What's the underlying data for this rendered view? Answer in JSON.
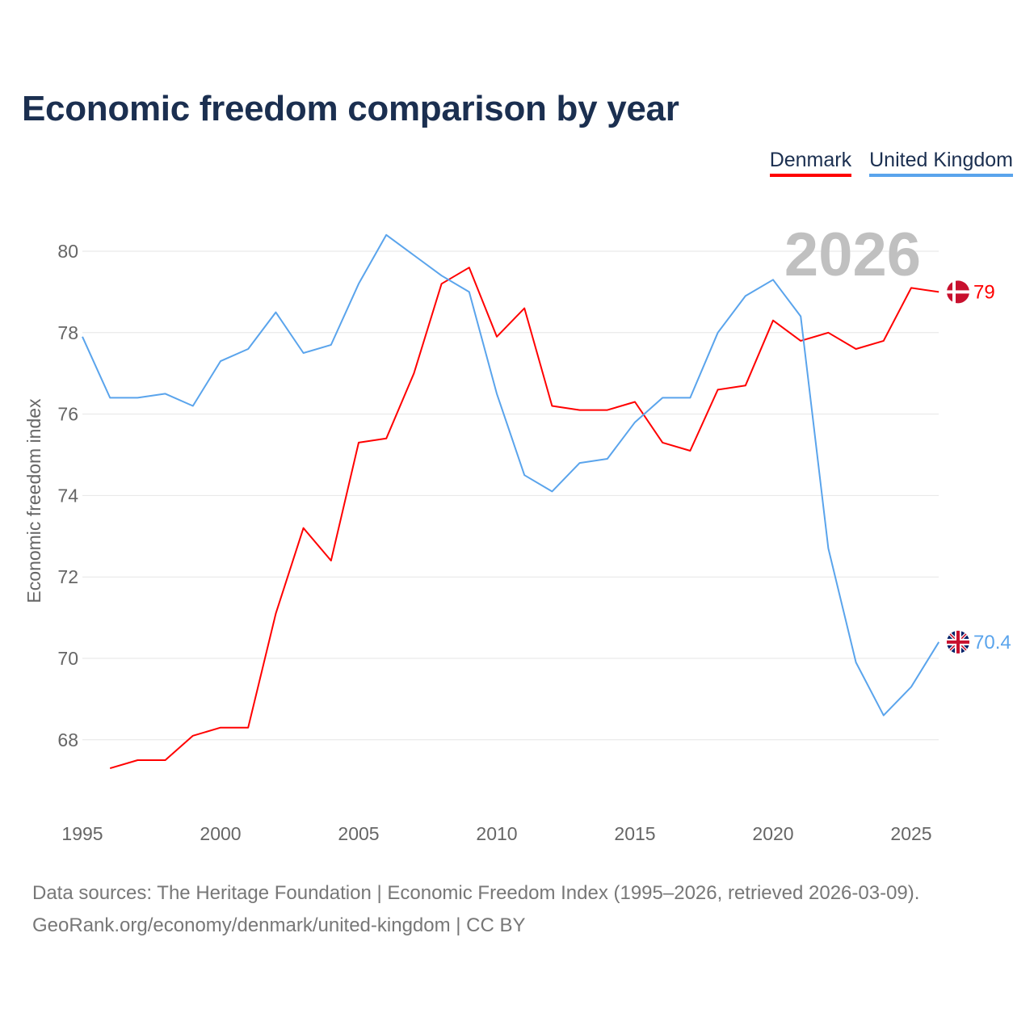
{
  "chart_data": {
    "type": "line",
    "title": "Economic freedom comparison by year",
    "xlabel": "",
    "ylabel": "Economic freedom index",
    "x": [
      1995,
      1996,
      1997,
      1998,
      1999,
      2000,
      2001,
      2002,
      2003,
      2004,
      2005,
      2006,
      2007,
      2008,
      2009,
      2010,
      2011,
      2012,
      2013,
      2014,
      2015,
      2016,
      2017,
      2018,
      2019,
      2020,
      2021,
      2022,
      2023,
      2024,
      2025,
      2026
    ],
    "x_ticks": [
      "1995",
      "2000",
      "2005",
      "2010",
      "2015",
      "2020",
      "2025"
    ],
    "y_ticks": [
      "68",
      "70",
      "72",
      "74",
      "76",
      "78",
      "80"
    ],
    "ylim": [
      66.5,
      81
    ],
    "xlim": [
      1995,
      2026
    ],
    "grid": true,
    "legend_position": "top-right",
    "watermark_year": "2026",
    "series": [
      {
        "name": "Denmark",
        "color": "#ff0000",
        "end_label": "79",
        "values": [
          null,
          67.3,
          67.5,
          67.5,
          68.1,
          68.3,
          68.3,
          71.1,
          73.2,
          72.4,
          75.3,
          75.4,
          77.0,
          79.2,
          79.6,
          77.9,
          78.6,
          76.2,
          76.1,
          76.1,
          76.3,
          75.3,
          75.1,
          76.6,
          76.7,
          78.3,
          77.8,
          78.0,
          77.6,
          77.8,
          79.1,
          79.0
        ]
      },
      {
        "name": "United Kingdom",
        "color": "#5aa4ec",
        "end_label": "70.4",
        "values": [
          77.9,
          76.4,
          76.4,
          76.5,
          76.2,
          77.3,
          77.6,
          78.5,
          77.5,
          77.7,
          79.2,
          80.4,
          79.9,
          79.4,
          79.0,
          76.5,
          74.5,
          74.1,
          74.8,
          74.9,
          75.8,
          76.4,
          76.4,
          78.0,
          78.9,
          79.3,
          78.4,
          72.7,
          69.9,
          68.6,
          69.3,
          70.4
        ]
      }
    ]
  },
  "footer": {
    "line1": "Data sources: The Heritage Foundation | Economic Freedom Index (1995–2026, retrieved 2026-03-09).",
    "line2": "GeoRank.org/economy/denmark/united-kingdom | CC BY"
  }
}
